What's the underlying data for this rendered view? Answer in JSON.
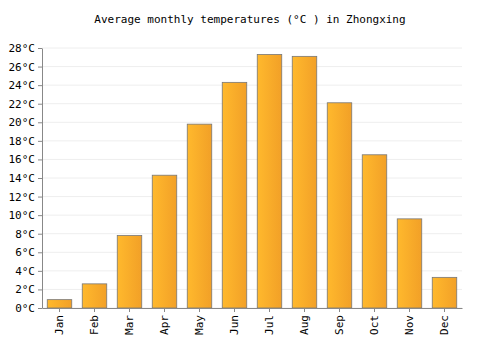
{
  "chart_data": {
    "type": "bar",
    "title": "Average monthly temperatures (°C ) in Zhongxing",
    "categories": [
      "Jan",
      "Feb",
      "Mar",
      "Apr",
      "May",
      "Jun",
      "Jul",
      "Aug",
      "Sep",
      "Oct",
      "Nov",
      "Dec"
    ],
    "values": [
      0.9,
      2.6,
      7.8,
      14.3,
      19.8,
      24.3,
      27.3,
      27.1,
      22.1,
      16.5,
      9.6,
      3.3
    ],
    "color": "#ffa929",
    "ylim": [
      0,
      28
    ],
    "yticks": [
      {
        "value": 0,
        "label": "0°C"
      },
      {
        "value": 2,
        "label": "2°C"
      },
      {
        "value": 4,
        "label": "4°C"
      },
      {
        "value": 6,
        "label": "6°C"
      },
      {
        "value": 8,
        "label": "8°C"
      },
      {
        "value": 10,
        "label": "10°C"
      },
      {
        "value": 12,
        "label": "12°C"
      },
      {
        "value": 14,
        "label": "14°C"
      },
      {
        "value": 16,
        "label": "16°C"
      },
      {
        "value": 18,
        "label": "18°C"
      },
      {
        "value": 20,
        "label": "20°C"
      },
      {
        "value": 22,
        "label": "22°C"
      },
      {
        "value": 24,
        "label": "24°C"
      },
      {
        "value": 26,
        "label": "26°C"
      },
      {
        "value": 28,
        "label": "28°C"
      }
    ],
    "grid": true
  }
}
